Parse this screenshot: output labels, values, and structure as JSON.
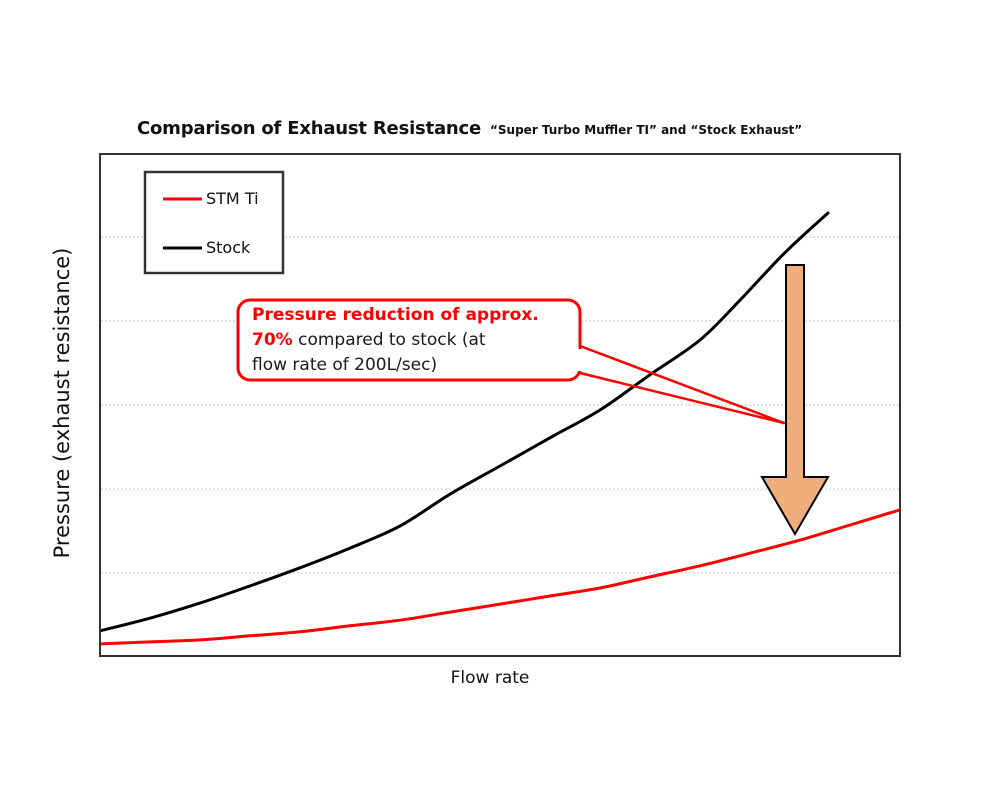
{
  "title": {
    "main": "Comparison of Exhaust Resistance",
    "sub": "“Super Turbo Muffler TI” and “Stock Exhaust”"
  },
  "axes": {
    "y_label": "Pressure (exhaust resistance)",
    "x_label": "Flow rate"
  },
  "legend": {
    "items": [
      {
        "label": "STM Ti",
        "color": "#fd0000"
      },
      {
        "label": "Stock",
        "color": "#000000"
      }
    ]
  },
  "callout": {
    "line1": "Pressure reduction of approx.",
    "line2_red": "70%",
    "line2_black": " compared to stock (at",
    "line3": "flow rate of 200L/sec)",
    "border_color": "#fd0000"
  },
  "arrow": {
    "meaning": "pressure drop from Stock curve down to STM Ti curve",
    "fill": "#f0ae7d",
    "outline": "#000000"
  },
  "colors": {
    "accent_red": "#fd0000",
    "stock_black": "#000000",
    "gridline": "#c4c4c4",
    "plot_border": "#333333",
    "background": "#ffffff"
  },
  "chart_data": {
    "type": "line",
    "title": "Comparison of Exhaust Resistance",
    "subtitle": "“Super Turbo Muffler TI” and “Stock Exhaust”",
    "xlabel": "Flow rate",
    "ylabel": "Pressure (exhaust resistance)",
    "axis_ticks": "none shown; values are relative units (0-100) estimated from plot geometry",
    "xlim": [
      0,
      100
    ],
    "ylim": [
      0,
      100
    ],
    "grid": {
      "horizontal_dotted_lines_at": [
        16.7,
        33.3,
        50.0,
        66.7,
        83.3
      ]
    },
    "legend_position": "upper-left inside plot",
    "series": [
      {
        "name": "STM Ti",
        "color": "#fd0000",
        "x": [
          0,
          6.25,
          12.5,
          18.75,
          25,
          31.25,
          37.5,
          43.75,
          50,
          56.25,
          62.5,
          68.75,
          75,
          81.25,
          87.5,
          93.75,
          100
        ],
        "values": [
          2.6,
          3.0,
          3.4,
          4.2,
          5.0,
          6.2,
          7.3,
          8.9,
          10.5,
          12.1,
          13.7,
          15.9,
          18.1,
          20.6,
          23.2,
          26.2,
          29.2
        ]
      },
      {
        "name": "Stock",
        "color": "#000000",
        "x": [
          0,
          6.25,
          12.5,
          18.75,
          25,
          31.25,
          37.5,
          43.75,
          50,
          56.25,
          62.5,
          68.75,
          75,
          80.0,
          85.6,
          91.0
        ],
        "values": [
          5.2,
          7.7,
          10.7,
          14.1,
          17.7,
          21.6,
          26.0,
          32.3,
          37.9,
          43.5,
          49.0,
          56.0,
          62.9,
          70.8,
          80.2,
          88.1
        ]
      }
    ],
    "annotation": {
      "text": "Pressure reduction of approx. 70% compared to stock (at flow rate of 200L/sec)",
      "callout_points_to": "gap between curves at high flow rate",
      "arrow": "large tan downward arrow from Stock curve to STM Ti curve"
    }
  }
}
